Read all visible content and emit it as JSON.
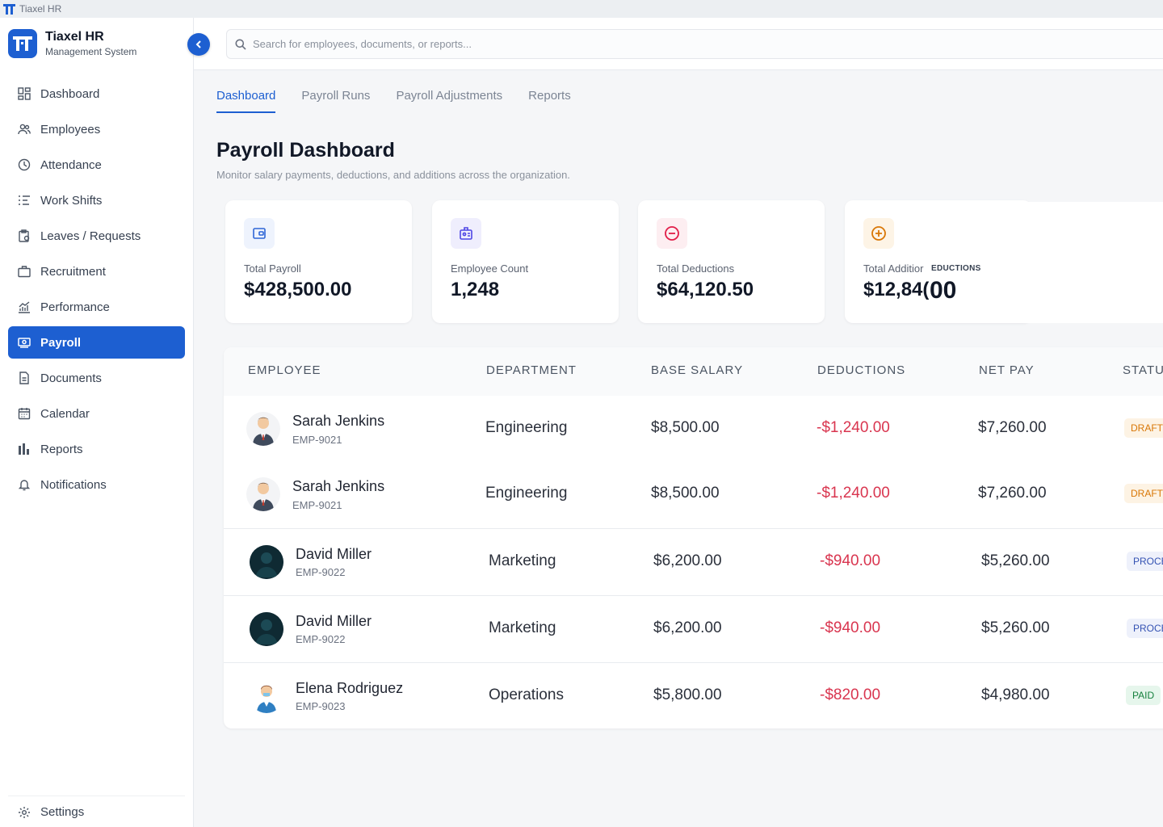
{
  "window": {
    "title": "Tiaxel HR"
  },
  "brand": {
    "title": "Tiaxel HR",
    "subtitle": "Management System"
  },
  "sidebar": {
    "items": [
      {
        "label": "Dashboard",
        "icon": "grid-icon"
      },
      {
        "label": "Employees",
        "icon": "users-icon"
      },
      {
        "label": "Attendance",
        "icon": "clock-icon"
      },
      {
        "label": "Work Shifts",
        "icon": "list-icon"
      },
      {
        "label": "Leaves / Requests",
        "icon": "clipboard-icon"
      },
      {
        "label": "Recruitment",
        "icon": "briefcase-icon"
      },
      {
        "label": "Performance",
        "icon": "chart-line-icon"
      },
      {
        "label": "Payroll",
        "icon": "money-icon",
        "active": true
      },
      {
        "label": "Documents",
        "icon": "document-icon"
      },
      {
        "label": "Calendar",
        "icon": "calendar-icon"
      },
      {
        "label": "Reports",
        "icon": "bar-chart-icon"
      },
      {
        "label": "Notifications",
        "icon": "bell-icon"
      }
    ],
    "settings_label": "Settings"
  },
  "search": {
    "placeholder": "Search for employees, documents, or reports..."
  },
  "tabs": [
    {
      "label": "Dashboard",
      "active": true
    },
    {
      "label": "Payroll Runs"
    },
    {
      "label": "Payroll Adjustments"
    },
    {
      "label": "Reports"
    }
  ],
  "page": {
    "title": "Payroll Dashboard",
    "subtitle": "Monitor salary payments, deductions, and additions across the organization."
  },
  "stats": [
    {
      "label": "Total Payroll",
      "value": "$428,500.00",
      "icon": "wallet-icon",
      "color": "#2f66d6"
    },
    {
      "label": "Employee Count",
      "value": "1,248",
      "icon": "id-badge-icon",
      "color": "#4f46e5"
    },
    {
      "label": "Total Deductions",
      "value": "$64,120.50",
      "icon": "minus-circle-icon",
      "color": "#e11d48"
    },
    {
      "label": "Total Additior",
      "value": "$12,84(",
      "icon": "plus-circle-icon",
      "color": "#d97706"
    }
  ],
  "overlay": {
    "label": "EDUCTIONS",
    "value": "00"
  },
  "table": {
    "headers": [
      "EMPLOYEE",
      "DEPARTMENT",
      "BASE SALARY",
      "DEDUCTIONS",
      "NET PAY",
      "STATU"
    ],
    "rows": [
      {
        "name": "Sarah Jenkins",
        "id": "EMP-9021",
        "department": "Engineering",
        "base": "$8,500.00",
        "deductions": "-$1,240.00",
        "net": "$7,260.00",
        "status": "DRAFT"
      },
      {
        "name": "Sarah Jenkins",
        "id": "EMP-9021",
        "department": "Engineering",
        "base": "$8,500.00",
        "deductions": "-$1,240.00",
        "net": "$7,260.00",
        "status": "DRAFT"
      },
      {
        "name": "David Miller",
        "id": "EMP-9022",
        "department": "Marketing",
        "base": "$6,200.00",
        "deductions": "-$940.00",
        "net": "$5,260.00",
        "status": "PROCE"
      },
      {
        "name": "David Miller",
        "id": "EMP-9022",
        "department": "Marketing",
        "base": "$6,200.00",
        "deductions": "-$940.00",
        "net": "$5,260.00",
        "status": "PROCE"
      },
      {
        "name": "Elena Rodriguez",
        "id": "EMP-9023",
        "department": "Operations",
        "base": "$5,800.00",
        "deductions": "-$820.00",
        "net": "$4,980.00",
        "status": "PAID"
      }
    ]
  },
  "colors": {
    "accent": "#1d5fd1",
    "negative": "#d9354f",
    "draft": "#d97706",
    "processing": "#3553b3",
    "paid": "#15803d"
  }
}
